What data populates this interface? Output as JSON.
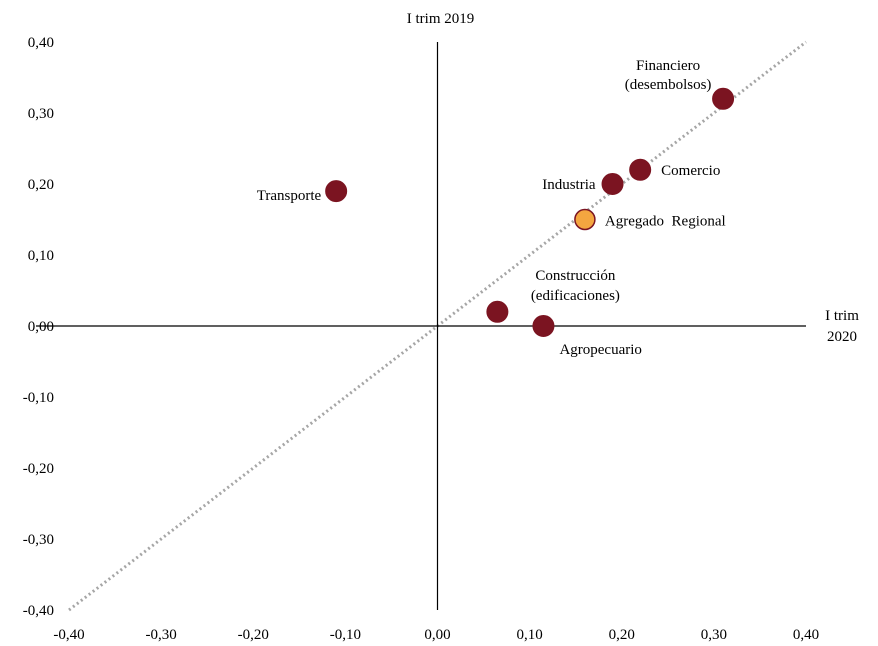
{
  "chart_data": {
    "type": "scatter",
    "title": "",
    "xlabel": [
      "I trim",
      "2020"
    ],
    "ylabel": "I trim 2019",
    "xlim": [
      -0.4,
      0.4
    ],
    "ylim": [
      -0.4,
      0.4
    ],
    "grid": false,
    "x_ticks": [
      "-0,40",
      "-0,30",
      "-0,20",
      "-0,10",
      "0,00",
      "0,10",
      "0,20",
      "0,30",
      "0,40"
    ],
    "y_ticks": [
      "0,40",
      "0,30",
      "0,20",
      "0,10",
      "0,00",
      "-0,10",
      "-0,20",
      "-0,30",
      "-0,40"
    ],
    "reference_line": {
      "style": "dotted",
      "from": [
        -0.4,
        -0.4
      ],
      "to": [
        0.4,
        0.4
      ],
      "color": "#A6A6A6"
    },
    "colors": {
      "sector": "#7B1421",
      "regional": "#F4A640",
      "regional_edge": "#7B1421",
      "axes": "#000000"
    },
    "points": [
      {
        "label": [
          "Financiero",
          "(desembolsos)"
        ],
        "x": 0.31,
        "y": 0.32,
        "kind": "sector"
      },
      {
        "label": [
          "Comercio"
        ],
        "x": 0.22,
        "y": 0.22,
        "kind": "sector"
      },
      {
        "label": [
          "Industria"
        ],
        "x": 0.19,
        "y": 0.2,
        "kind": "sector"
      },
      {
        "label": [
          "Agregado  Regional"
        ],
        "x": 0.16,
        "y": 0.15,
        "kind": "regional"
      },
      {
        "label": [
          "Transporte"
        ],
        "x": -0.11,
        "y": 0.19,
        "kind": "sector"
      },
      {
        "label": [
          "Construcción",
          "(edificaciones)"
        ],
        "x": 0.065,
        "y": 0.02,
        "kind": "sector"
      },
      {
        "label": [
          "Agropecuario"
        ],
        "x": 0.115,
        "y": 0.0,
        "kind": "sector"
      }
    ]
  }
}
